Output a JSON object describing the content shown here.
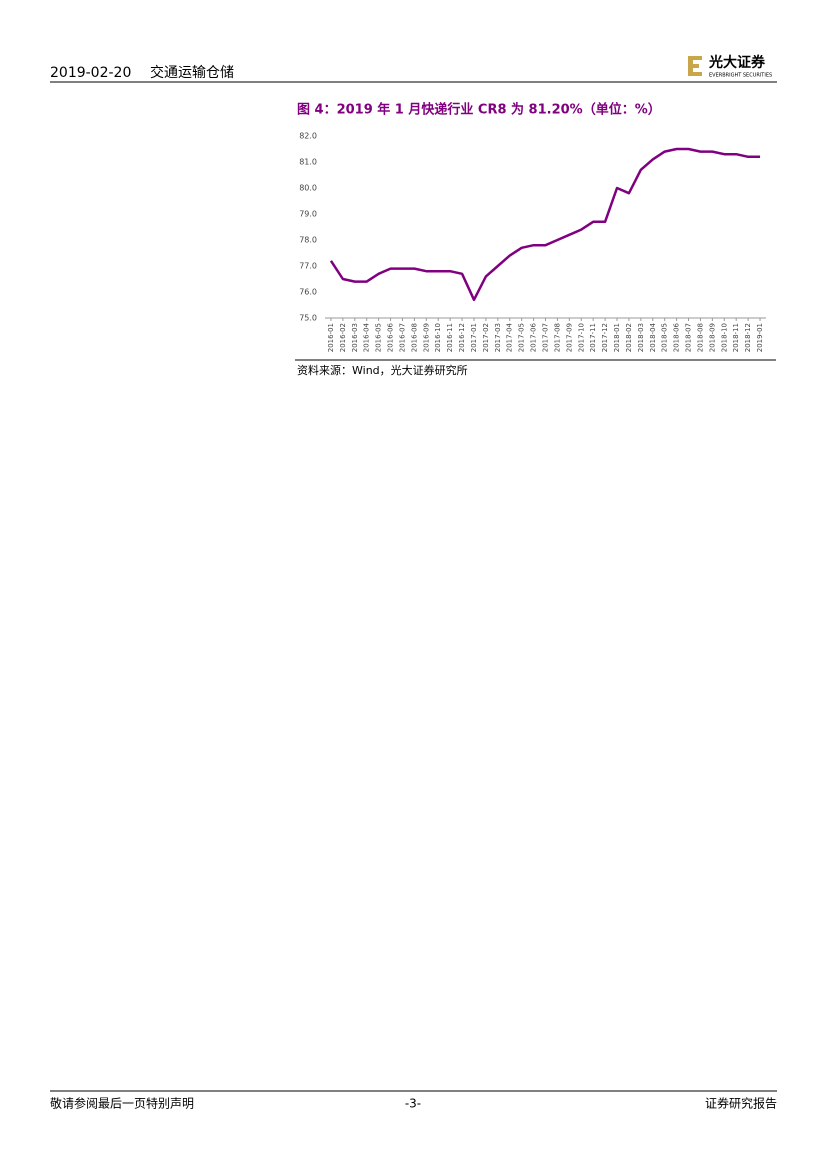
{
  "header": {
    "date": "2019-02-20",
    "sector": "交通运输仓储",
    "logo_cn": "光大证券",
    "logo_en": "EVERBRIGHT SECURITIES"
  },
  "chart_data": {
    "type": "line",
    "title": "图 4：2019 年 1 月快递行业 CR8 为 81.20%（单位：%）",
    "source": "资料来源：Wind，光大证券研究所",
    "categories": [
      "2016-01",
      "2016-02",
      "2016-03",
      "2016-04",
      "2016-05",
      "2016-06",
      "2016-07",
      "2016-08",
      "2016-09",
      "2016-10",
      "2016-11",
      "2016-12",
      "2017-01",
      "2017-02",
      "2017-03",
      "2017-04",
      "2017-05",
      "2017-06",
      "2017-07",
      "2017-08",
      "2017-09",
      "2017-10",
      "2017-11",
      "2017-12",
      "2018-01",
      "2018-02",
      "2018-03",
      "2018-04",
      "2018-05",
      "2018-06",
      "2018-07",
      "2018-08",
      "2018-09",
      "2018-10",
      "2018-11",
      "2018-12",
      "2019-01"
    ],
    "values": [
      77.2,
      76.5,
      76.4,
      76.4,
      76.7,
      76.9,
      76.9,
      76.9,
      76.8,
      76.8,
      76.8,
      76.7,
      75.7,
      76.6,
      77.0,
      77.4,
      77.7,
      77.8,
      77.8,
      78.0,
      78.2,
      78.4,
      78.7,
      78.7,
      80.0,
      79.8,
      80.7,
      81.1,
      81.4,
      81.5,
      81.5,
      81.4,
      81.4,
      81.3,
      81.3,
      81.2,
      81.2
    ],
    "color": "#800080",
    "ylim": [
      75,
      82
    ],
    "yticks": [
      {
        "value": 75,
        "label": "75.0"
      },
      {
        "value": 76,
        "label": "76.0"
      },
      {
        "value": 77,
        "label": "77.0"
      },
      {
        "value": 78,
        "label": "78.0"
      },
      {
        "value": 79,
        "label": "79.0"
      },
      {
        "value": 80,
        "label": "80.0"
      },
      {
        "value": 81,
        "label": "81.0"
      },
      {
        "value": 82,
        "label": "82.0"
      }
    ],
    "grid": false
  },
  "footer": {
    "disclaimer": "敬请参阅最后一页特别声明",
    "page": "-3-",
    "report_type": "证券研究报告"
  }
}
